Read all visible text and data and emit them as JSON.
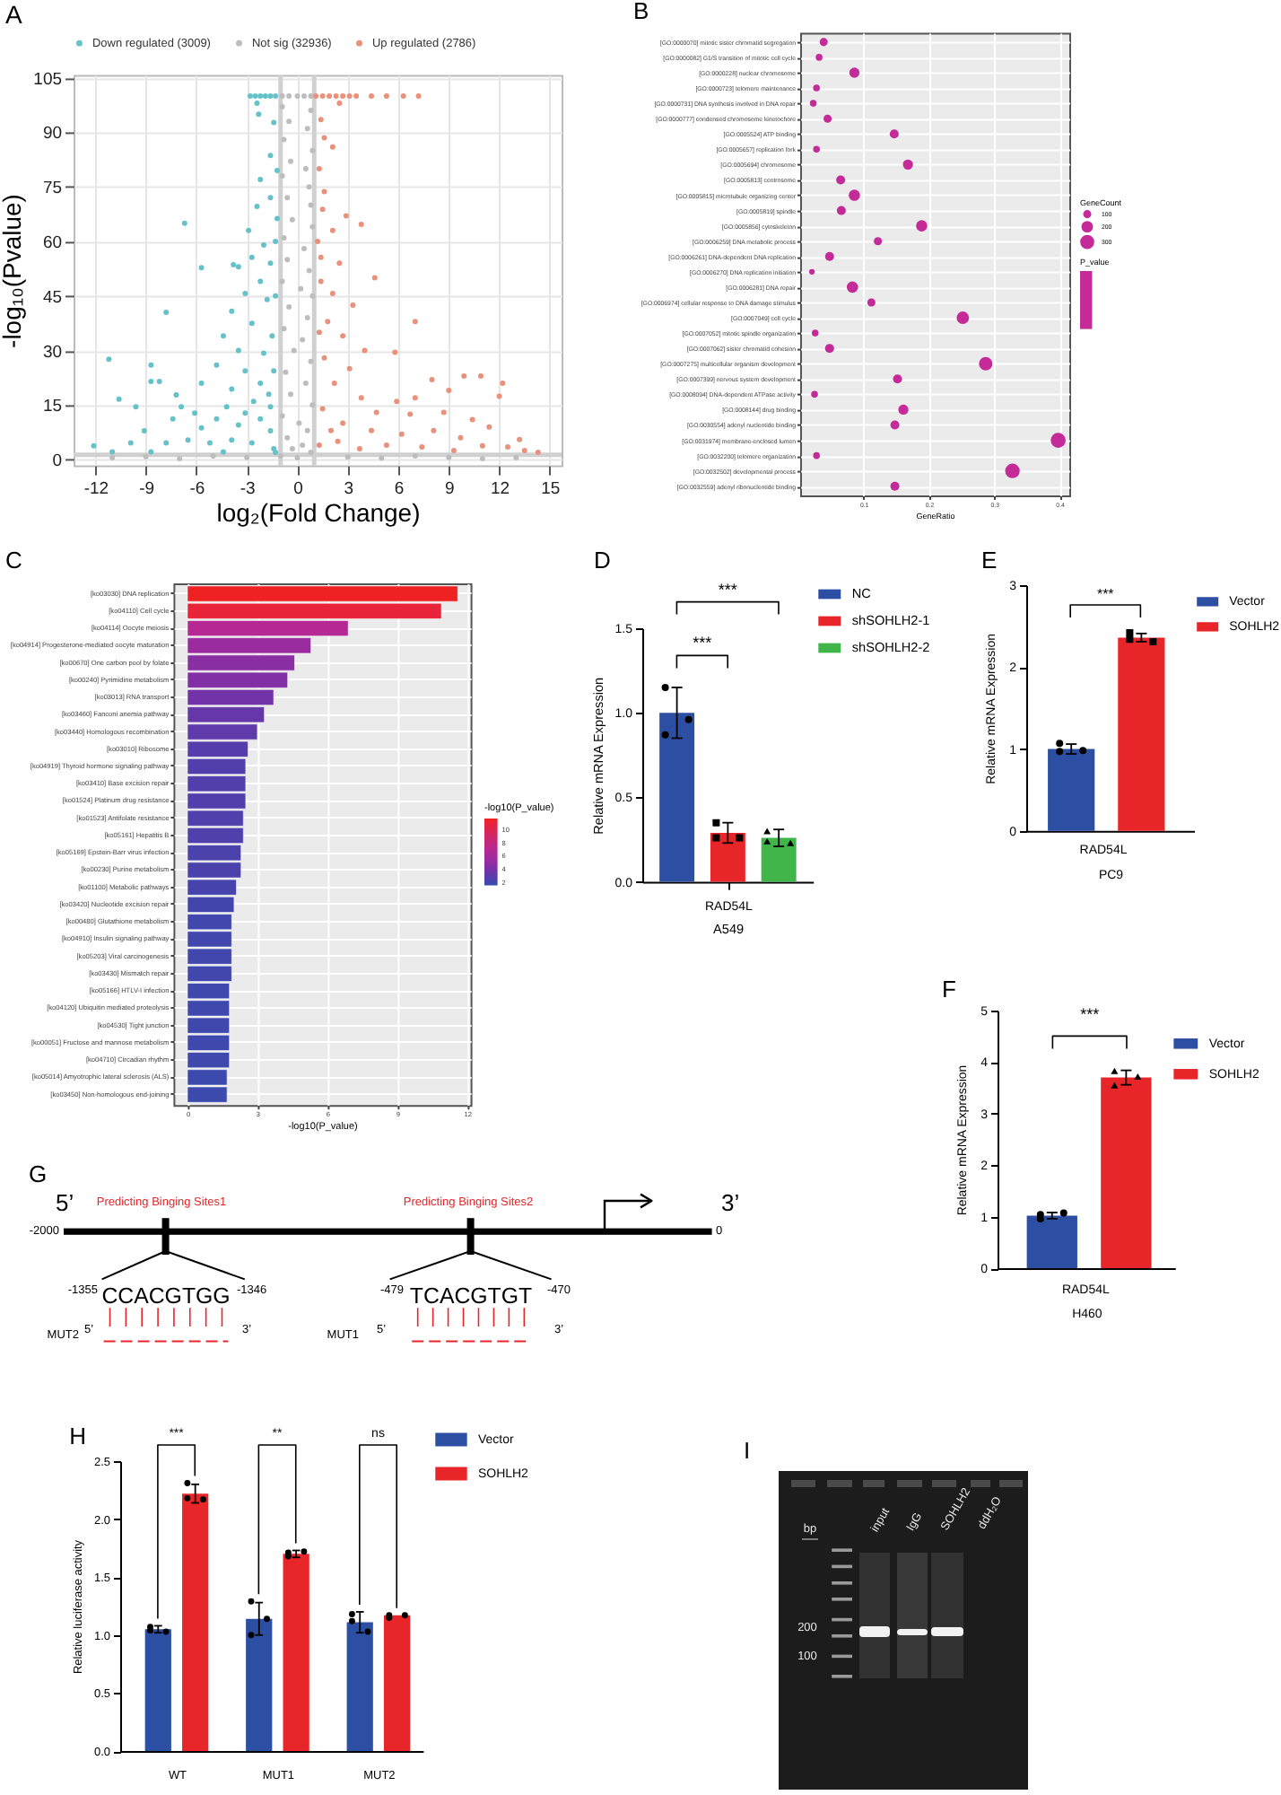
{
  "chart_data": [
    {
      "type": "scatter",
      "annotations": [
        "A"
      ],
      "xlabel": "log₂(Fold Change)",
      "ylabel": "-log₁₀(Pvalue)",
      "xlim": [
        -13.3,
        15.7
      ],
      "xticks": [
        -12,
        -9,
        -6,
        -3,
        0,
        3,
        6,
        9,
        12,
        15
      ],
      "ylim": [
        -1.6,
        105.8
      ],
      "yticks": [
        0,
        15,
        30,
        45,
        60,
        75,
        90,
        105
      ],
      "grid": true,
      "legend": "top",
      "marker": "circle",
      "ref_lines": [
        {
          "axis": "x",
          "value": -1,
          "color": "#d0d0d0"
        },
        {
          "axis": "x",
          "value": 1,
          "color": "#d0d0d0"
        },
        {
          "axis": "y",
          "value": 1.3,
          "color": "#d0d0d0"
        }
      ],
      "series": [
        {
          "name": "Down regulated (3009)",
          "color": "#66c2c9",
          "x": [
            -2.8,
            -2.5,
            -2.2,
            -1.9,
            -1.6,
            -1.3,
            -2.4,
            -2.3,
            -1.4,
            -1.6,
            -1.2,
            -2.2,
            -1.6,
            -2.4,
            -1.2,
            -2.9,
            -2.0,
            -2.7,
            -1.6,
            -3.5,
            -2.2,
            -3.1,
            -1.8,
            -3.9,
            -2.7,
            -4.4,
            -3.5,
            -2.0,
            -4.8,
            -3.1,
            -5.7,
            -3.9,
            -2.2,
            -6.7,
            -5.7,
            -3.8,
            -7.8,
            -11.2,
            -8.7,
            -8.7,
            -8.2,
            -10.6,
            -9.6,
            -7.2,
            -6.9,
            -12.1,
            -11.0,
            -9.1,
            -7.4,
            -6.1,
            -5.7,
            -4.8,
            -4.2,
            -3.5,
            -3.1,
            -2.2,
            -9.9,
            -7.8,
            -6.5,
            -5.2,
            -3.9,
            -2.7,
            -1.6,
            -1.4,
            -8.7,
            -4.4,
            -1.6,
            -1.4,
            -1.5,
            -1.3,
            -1.3,
            -1.7,
            -2.6,
            -1.3
          ],
          "values": [
            100,
            100,
            100,
            100,
            100,
            100,
            98,
            95,
            92.7,
            83.6,
            79.5,
            77,
            72,
            69.6,
            66.3,
            63,
            59,
            55.6,
            54,
            53,
            49,
            45.7,
            44,
            40.8,
            37.5,
            34,
            30,
            29.3,
            26,
            24.4,
            21,
            19.4,
            21,
            65,
            52.8,
            53.6,
            40.5,
            27.6,
            26,
            21.5,
            21.5,
            16.6,
            14.5,
            17.8,
            14.5,
            3.8,
            2.1,
            7.9,
            11.2,
            12.8,
            8.7,
            11.2,
            14.5,
            9.5,
            12.8,
            11.2,
            4.6,
            4.6,
            5.4,
            4.6,
            5.4,
            4.6,
            7.9,
            3,
            2.1,
            2.1,
            14.5,
            24.4,
            34,
            45,
            60,
            18,
            16,
            2
          ]
        },
        {
          "name": "Not sig (32936)",
          "color": "#bdbdbd",
          "x": [
            -0.9,
            -0.5,
            0,
            0.4,
            0.8,
            -0.9,
            0.8,
            -0.5,
            0.6,
            -0.8,
            0.9,
            -0.4,
            0.5,
            -0.9,
            0.7,
            -0.6,
            0.8,
            -0.3,
            0.9,
            -0.8,
            0.4,
            -0.6,
            0.7,
            -0.9,
            0.2,
            0.9,
            -0.5,
            0.6,
            -0.8,
            0.3,
            -0.2,
            0.8,
            -0.7,
            0.5,
            -0.4,
            0.9,
            -0.9,
            0.1,
            0.6,
            -0.6,
            0.3,
            -0.3,
            0.8,
            -1.0,
            0,
            -11,
            -9,
            -7,
            -5,
            -3,
            3,
            5,
            7,
            9,
            11,
            13
          ],
          "values": [
            100,
            100,
            100,
            100,
            100,
            97,
            96,
            93,
            91,
            88,
            85,
            82,
            80,
            78,
            75,
            72,
            70,
            66,
            64,
            61,
            58,
            55,
            52,
            49,
            47,
            45,
            42,
            39,
            36,
            33,
            30,
            27,
            24,
            21,
            18,
            15,
            12,
            10,
            8,
            6,
            4,
            3,
            2,
            1,
            0.5,
            0.5,
            0.8,
            0.3,
            1.0,
            0.6,
            0.7,
            0.4,
            1.0,
            0.6,
            0.3,
            0.5
          ]
        },
        {
          "name": "Up regulated (2786)",
          "color": "#e9917a",
          "x": [
            1.1,
            1.5,
            1.9,
            2.3,
            2.7,
            3.1,
            3.5,
            4.4,
            5.3,
            6.3,
            7.2,
            2.5,
            1.4,
            1.6,
            2.1,
            1.3,
            1.6,
            1.5,
            2.9,
            3.8,
            2.1,
            1.4,
            2.5,
            4.6,
            1.4,
            2.1,
            3.3,
            7.0,
            1.8,
            2.7,
            4.0,
            5.8,
            1.6,
            3.1,
            2.2,
            8.0,
            9.9,
            10.9,
            12.2,
            12.0,
            9.0,
            7.0,
            5.9,
            3.8,
            4.7,
            6.7,
            8.7,
            10.4,
            11.4,
            9.7,
            8.1,
            6.2,
            4.4,
            2.7,
            1.5,
            1.3,
            2.4,
            3.7,
            5.3,
            7.4,
            9.3,
            11.0,
            12.5,
            13.5,
            14.3,
            13.2,
            1.2,
            1.3,
            2.0
          ],
          "values": [
            100,
            100,
            100,
            100,
            100,
            100,
            100,
            100,
            100,
            100,
            100,
            98,
            93.5,
            88.5,
            86,
            80,
            73.7,
            68.8,
            67,
            64.7,
            63,
            55.6,
            54,
            50,
            49,
            45.7,
            42.5,
            38,
            38,
            34,
            30,
            29.5,
            28,
            25,
            21,
            22,
            23,
            23,
            21,
            17.4,
            19,
            17,
            16,
            17,
            13,
            12.5,
            13,
            11,
            9,
            6,
            8,
            7,
            8,
            10,
            14,
            4,
            5,
            3,
            4,
            3.5,
            2.5,
            3.8,
            3.5,
            2.5,
            2.0,
            5.5,
            60,
            35,
            8
          ]
        }
      ]
    },
    {
      "type": "scatter",
      "orientation": "horizontal",
      "annotations": [
        "B"
      ],
      "xlabel": "GeneRatio",
      "legend_title": "GeneCount",
      "clabel": "P_value",
      "grid": true,
      "xlim": [
        0.003,
        0.415
      ],
      "xticks": [
        0.1,
        0.2,
        0.3,
        0.4
      ],
      "size_legend": [
        100,
        200,
        300
      ],
      "categories": [
        "[GO:0000070] mitotic sister chromatid segregation",
        "[GO:0000082] G1/S transition of mitotic cell cycle",
        "[GO:0000228] nuclear chromosome",
        "[GO:0000723] telomere maintenance",
        "[GO:0000731] DNA synthesis involved in DNA repair",
        "[GO:0000777] condensed chromosome kinetochore",
        "[GO:0005524] ATP binding",
        "[GO:0005657] replication fork",
        "[GO:0005694] chromosome",
        "[GO:0005813] centrosome",
        "[GO:0005815] microtubule organizing center",
        "[GO:0005819] spindle",
        "[GO:0005856] cytoskeleton",
        "[GO:0006259] DNA metabolic process",
        "[GO:0006261] DNA-dependent DNA replication",
        "[GO:0006270] DNA replication initiation",
        "[GO:0006281] DNA repair",
        "[GO:0006974] cellular response to DNA damage stimulus",
        "[GO:0007049] cell cycle",
        "[GO:0007052] mitotic spindle organization",
        "[GO:0007062] sister chromatid cohesion",
        "[GO:0007275] multicellular organism development",
        "[GO:0007399] nervous system development",
        "[GO:0008094] DNA-dependent ATPase activity",
        "[GO:0008144] drug binding",
        "[GO:0030554] adenyl nucleotide binding",
        "[GO:0031974] membrane-enclosed lumen",
        "[GO:0032200] telomere organization",
        "[GO:0032502] developmental process",
        "[GO:0032559] adenyl ribonucleotide binding"
      ],
      "series": [
        {
          "color": "#c42a98",
          "values": [
            0.039,
            0.032,
            0.086,
            0.028,
            0.023,
            0.045,
            0.147,
            0.028,
            0.168,
            0.065,
            0.086,
            0.066,
            0.189,
            0.122,
            0.048,
            0.021,
            0.083,
            0.112,
            0.252,
            0.026,
            0.048,
            0.287,
            0.152,
            0.025,
            0.161,
            0.148,
            0.398,
            0.028,
            0.328,
            0.148
          ],
          "sizes": [
            100,
            70,
            156,
            70,
            70,
            100,
            123,
            70,
            156,
            123,
            193,
            123,
            193,
            100,
            123,
            48,
            193,
            100,
            233,
            70,
            123,
            278,
            123,
            70,
            156,
            123,
            340,
            70,
            320,
            123
          ]
        }
      ]
    },
    {
      "type": "bar",
      "orientation": "horizontal",
      "annotations": [
        "C"
      ],
      "xlabel": "-log10(P_value)",
      "clabel": "-log10(P_value)",
      "grid": true,
      "xlim": [
        -0.6,
        12.15
      ],
      "xticks": [
        0,
        3,
        6,
        9,
        12
      ],
      "clim": [
        1.5,
        11.6
      ],
      "cticks": [
        2,
        4,
        6,
        8,
        10
      ],
      "categories": [
        "[ko03030] DNA replication",
        "[ko04110] Cell cycle",
        "[ko04114] Oocyte meiosis",
        "[ko04914] Progesterone-mediated oocyte maturation",
        "[ko00670] One carbon pool by folate",
        "[ko00240] Pyrimidine metabolism",
        "[ko03013] RNA transport",
        "[ko03460] Fanconi anemia pathway",
        "[ko03440] Homologous recombination",
        "[ko03010] Ribosome",
        "[ko04919] Thyroid hormone signaling pathway",
        "[ko03410] Base excision repair",
        "[ko01524] Platinum drug resistance",
        "[ko01523] Antifolate resistance",
        "[ko05161] Hepatitis B",
        "[ko05169] Epstein-Barr virus infection",
        "[ko00230] Purine metabolism",
        "[ko01100] Metabolic pathways",
        "[ko03420] Nucleotide excision repair",
        "[ko00480] Glutathione metabolism",
        "[ko04910] Insulin signaling pathway",
        "[ko05203] Viral carcinogenesis",
        "[ko03430] Mismatch repair",
        "[ko05166] HTLV-I infection",
        "[ko04120] Ubiquitin mediated proteolysis",
        "[ko04530] Tight junction",
        "[ko00051] Fructose and mannose metabolism",
        "[ko04710] Circadian rhythm",
        "[ko05014] Amyotrophic lateral sclerosis (ALS)",
        "[ko03450] Non-homologous end-joining"
      ],
      "values": [
        11.6,
        10.9,
        6.9,
        5.3,
        4.6,
        4.3,
        3.7,
        3.3,
        3.0,
        2.6,
        2.5,
        2.5,
        2.5,
        2.4,
        2.4,
        2.3,
        2.3,
        2.1,
        2.0,
        1.9,
        1.9,
        1.9,
        1.9,
        1.8,
        1.8,
        1.8,
        1.8,
        1.8,
        1.7,
        1.7
      ],
      "colors": [
        "#ee2222",
        "#e9233a",
        "#b62994",
        "#9a2ca0",
        "#8a2ea4",
        "#822fa5",
        "#7233a8",
        "#6637a9",
        "#5f3aaa",
        "#553eab",
        "#523fab",
        "#523fab",
        "#523fab",
        "#4f40ab",
        "#4f40ab",
        "#4c42ac",
        "#4c42ac",
        "#4644ac",
        "#4345ac",
        "#4147ad",
        "#4147ad",
        "#4147ad",
        "#4147ad",
        "#3f48ad",
        "#3f48ad",
        "#3f48ad",
        "#3f48ad",
        "#3f48ad",
        "#3d4aad",
        "#3d4aad"
      ]
    },
    {
      "type": "bar",
      "stacked": true,
      "annotations": [
        "D",
        "***",
        "***"
      ],
      "categories": [
        null,
        "RAD54L",
        null
      ],
      "xlabel": "A549",
      "ylabel": "Relative mRNA Expression",
      "ylim": [
        0,
        1.5
      ],
      "yticks": [
        {
          "value": 0,
          "label": "0.0"
        },
        {
          "value": 0.5,
          "label": "0.5"
        },
        {
          "value": 1,
          "label": "1.0"
        },
        {
          "value": 1.5,
          "label": "1.5"
        }
      ],
      "legend": "top right",
      "series": [
        {
          "name": "NC",
          "color": "#2d4fa3",
          "values": [
            1.0,
            null,
            null
          ],
          "errors": [
            0.15,
            null,
            null
          ]
        },
        {
          "name": "shSOHLH2-1",
          "color": "#e8262a",
          "values": [
            null,
            0.29,
            null
          ],
          "errors": [
            null,
            0.06,
            null
          ]
        },
        {
          "name": "shSOHLH2-2",
          "color": "#3fb54a",
          "values": [
            null,
            null,
            0.26
          ],
          "errors": [
            null,
            null,
            0.05
          ]
        },
        {
          "type": "scatter",
          "color": "#000000",
          "values": [
            1.15,
            null,
            null
          ]
        },
        {
          "type": "scatter",
          "color": "#000000",
          "values": [
            0.96,
            null,
            null
          ]
        },
        {
          "type": "scatter",
          "color": "#000000",
          "values": [
            0.87,
            null,
            null
          ]
        },
        {
          "type": "scatter",
          "color": "#000000",
          "marker": "square",
          "values": [
            null,
            0.35,
            null
          ]
        },
        {
          "type": "scatter",
          "color": "#000000",
          "marker": "square",
          "values": [
            null,
            0.26,
            null
          ]
        },
        {
          "type": "scatter",
          "color": "#000000",
          "marker": "square",
          "values": [
            null,
            0.26,
            null
          ]
        },
        {
          "type": "scatter",
          "color": "#000000",
          "marker": "triangle",
          "values": [
            null,
            null,
            0.3
          ]
        },
        {
          "type": "scatter",
          "color": "#000000",
          "marker": "triangle",
          "values": [
            null,
            null,
            0.23
          ]
        },
        {
          "type": "scatter",
          "color": "#000000",
          "marker": "triangle",
          "values": [
            null,
            null,
            0.24
          ]
        }
      ]
    },
    {
      "type": "bar",
      "stacked": true,
      "annotations": [
        "E",
        "***",
        "RAD54L"
      ],
      "categories": [
        null,
        null
      ],
      "xlabel": "PC9",
      "ylabel": "Relative mRNA Expression",
      "ylim": [
        0,
        3
      ],
      "yticks": [
        0,
        1,
        2,
        3
      ],
      "legend": "top right",
      "series": [
        {
          "name": "Vector",
          "color": "#2d4fa3",
          "values": [
            1.0,
            null
          ],
          "errors": [
            0.06,
            null
          ]
        },
        {
          "name": "SOHLH2",
          "color": "#e8262a",
          "values": [
            null,
            2.36
          ],
          "errors": [
            null,
            0.05
          ]
        },
        {
          "type": "scatter",
          "color": "#000000",
          "values": [
            1.07,
            null
          ]
        },
        {
          "type": "scatter",
          "color": "#000000",
          "values": [
            0.98,
            null
          ]
        },
        {
          "type": "scatter",
          "color": "#000000",
          "values": [
            0.97,
            null
          ]
        },
        {
          "type": "scatter",
          "color": "#000000",
          "marker": "square",
          "values": [
            null,
            2.42
          ]
        },
        {
          "type": "scatter",
          "color": "#000000",
          "marker": "square",
          "values": [
            null,
            2.31
          ]
        },
        {
          "type": "scatter",
          "color": "#000000",
          "marker": "square",
          "values": [
            null,
            2.34
          ]
        }
      ]
    },
    {
      "type": "bar",
      "stacked": true,
      "annotations": [
        "F",
        "***",
        "RAD54L"
      ],
      "categories": [
        null,
        null
      ],
      "xlabel": "H460",
      "ylabel": "Relative mRNA Expression",
      "ylim": [
        0,
        5
      ],
      "yticks": [
        0,
        1,
        2,
        3,
        4,
        5
      ],
      "legend": "top right",
      "series": [
        {
          "name": "Vector",
          "color": "#2d4fa3",
          "values": [
            1.02,
            null
          ],
          "errors": [
            0.06,
            null
          ]
        },
        {
          "name": "SOHLH2",
          "color": "#e8262a",
          "values": [
            null,
            3.7
          ],
          "errors": [
            null,
            0.14
          ]
        },
        {
          "type": "scatter",
          "color": "#000000",
          "values": [
            0.96,
            null
          ]
        },
        {
          "type": "scatter",
          "color": "#000000",
          "values": [
            1.07,
            null
          ]
        },
        {
          "type": "scatter",
          "color": "#000000",
          "values": [
            1.04,
            null
          ]
        },
        {
          "type": "scatter",
          "color": "#000000",
          "marker": "triangle",
          "values": [
            null,
            3.83
          ]
        },
        {
          "type": "scatter",
          "color": "#000000",
          "marker": "triangle",
          "values": [
            null,
            3.72
          ]
        },
        {
          "type": "scatter",
          "color": "#000000",
          "marker": "triangle",
          "values": [
            null,
            3.55
          ]
        }
      ]
    },
    {
      "type": "other",
      "annotations": [
        "G",
        "5’",
        "Predicting Binging Sites1",
        "Predicting Binging Sites2",
        "3’",
        "-2000",
        "0",
        "-1355",
        "CCACGTGG",
        "-1346",
        "-479",
        "TCACGTGT",
        "-470",
        "MUT2",
        "5’",
        "3’",
        "MUT1",
        "5’",
        "3’"
      ]
    },
    {
      "type": "bar",
      "annotations": [
        "H",
        "***",
        "**",
        "ns"
      ],
      "categories": [
        "WT",
        "MUT1",
        "MUT2"
      ],
      "ylabel": "Relative luciferase activity",
      "ylim": [
        0,
        2.5
      ],
      "yticks": [
        {
          "value": 0,
          "label": "0.0"
        },
        {
          "value": 0.5,
          "label": "0.5"
        },
        {
          "value": 1,
          "label": "1.0"
        },
        {
          "value": 1.5,
          "label": "1.5"
        },
        {
          "value": 2,
          "label": "2.0"
        },
        {
          "value": 2.5,
          "label": "2.5"
        }
      ],
      "legend": "top right",
      "series": [
        {
          "name": "Vector",
          "color": "#2d4fa3",
          "values": [
            1.05,
            1.14,
            1.11
          ],
          "errors": [
            0.03,
            0.14,
            0.09
          ]
        },
        {
          "name": "SOHLH2",
          "color": "#e8262a",
          "values": [
            2.22,
            1.7,
            1.17
          ],
          "errors": [
            0.08,
            0.03,
            null
          ]
        },
        {
          "type": "scatter",
          "color": "#000000",
          "x": [
            "WT",
            "WT",
            "WT",
            "MUT1",
            "MUT1",
            "MUT1",
            "MUT2",
            "MUT2",
            "MUT2"
          ],
          "values": [
            1.07,
            1.03,
            1.04,
            1.29,
            1.14,
            1.0,
            1.18,
            1.03,
            1.12
          ]
        },
        {
          "type": "scatter",
          "color": "#000000",
          "x": [
            "WT",
            "WT",
            "WT",
            "MUT1",
            "MUT1",
            "MUT1",
            "MUT2",
            "MUT2",
            "MUT2"
          ],
          "values": [
            2.31,
            2.17,
            2.18,
            1.68,
            1.72,
            1.71,
            1.15,
            1.17,
            1.17
          ]
        }
      ]
    },
    {
      "type": "other",
      "annotations": [
        "I",
        "bp",
        "input",
        "IgG",
        "SOHLH2",
        "ddH₂O",
        "200",
        "100"
      ]
    }
  ]
}
